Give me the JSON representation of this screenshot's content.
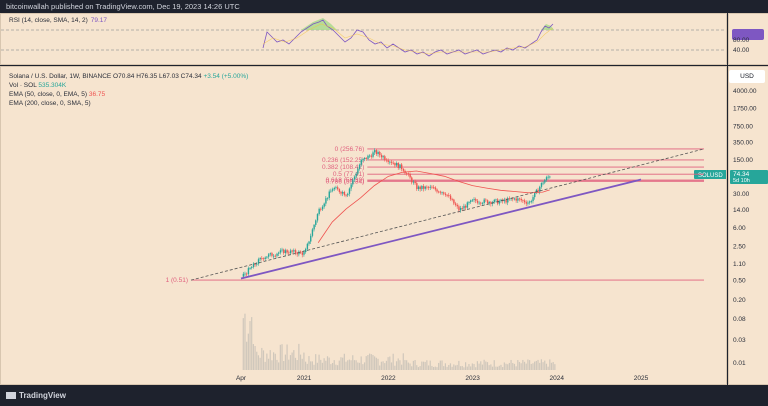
{
  "header": {
    "publish_line": "bitcoinwallah published on TradingView.com, Dec 19, 2023 14:26 UTC"
  },
  "rsi": {
    "label": "RSI (14, close, SMA, 14, 2)",
    "value": "79.17",
    "levels": [
      "80.00",
      "40.00"
    ],
    "line_color": "#7e57c2"
  },
  "legend": {
    "symbol": "Solana / U.S. Dollar, 1W, BINANCE",
    "open": "O70.84",
    "high": "H76.35",
    "low": "L67.03",
    "close": "C74.34",
    "change": "+3.54 (+5.00%)",
    "vol_label": "Vol · SOL",
    "vol_value": "535.304K",
    "ema50_label": "EMA (50, close, 0, EMA, 5)",
    "ema50_value": "36.75",
    "ema200_label": "EMA (200, close, 0, SMA, 5)"
  },
  "price_axis": {
    "currency": "USD",
    "ticks": [
      "4000.00",
      "1750.00",
      "750.00",
      "350.00",
      "150.00",
      "70.00",
      "30.00",
      "14.00",
      "6.00",
      "2.50",
      "1.10",
      "0.50",
      "0.20",
      "0.08",
      "0.03",
      "0.01"
    ],
    "last_price_label": "SOLUSD",
    "last_price": "74.34",
    "countdown": "5d 10h"
  },
  "fib_levels": [
    {
      "label": "0 (256.76)",
      "value": 256.76
    },
    {
      "label": "0.236 (152.25)",
      "value": 152.25
    },
    {
      "label": "0.382 (108.42)",
      "value": 108.42
    },
    {
      "label": "0.5 (77.41)",
      "value": 77.41
    },
    {
      "label": "0.618 (58.39)",
      "value": 58.39
    },
    {
      "label": "0.786 (55.34)",
      "value": 55.34
    },
    {
      "label": "1 (0.51)",
      "value": 0.51
    }
  ],
  "time_axis": {
    "ticks": [
      "Apr",
      "2021",
      "2022",
      "2023",
      "2024",
      "2025"
    ]
  },
  "footer": {
    "brand": "TradingView"
  },
  "colors": {
    "background": "#f6e4cf",
    "candle_up": "#26a69a",
    "candle_down": "#ef5350",
    "fib_line": "#e0607e",
    "support_line": "#7e57c2",
    "ema200": "#ef5350",
    "trend_dashed": "#555555"
  },
  "chart_data": {
    "type": "candlestick",
    "symbol": "Solana / U.S. Dollar, 1W, BINANCE",
    "y_scale": "log",
    "ylim": [
      0.01,
      4000
    ],
    "x": [
      "2020-04",
      "2020-07",
      "2020-10",
      "2021-01",
      "2021-03",
      "2021-05",
      "2021-07",
      "2021-09",
      "2021-11",
      "2022-01",
      "2022-03",
      "2022-05",
      "2022-07",
      "2022-09",
      "2022-11",
      "2023-01",
      "2023-03",
      "2023-05",
      "2023-07",
      "2023-09",
      "2023-11",
      "2023-12"
    ],
    "close": [
      0.6,
      1.5,
      2.0,
      1.8,
      14.0,
      40.0,
      30.0,
      140.0,
      220.0,
      150.0,
      100.0,
      40.0,
      40.0,
      32.0,
      14.0,
      22.0,
      21.0,
      21.0,
      24.0,
      20.0,
      55.0,
      74.34
    ],
    "ema200": [
      null,
      null,
      null,
      null,
      3,
      8,
      15,
      25,
      45,
      70,
      85,
      90,
      80,
      70,
      55,
      45,
      40,
      36,
      34,
      32,
      33,
      36.75
    ]
  }
}
